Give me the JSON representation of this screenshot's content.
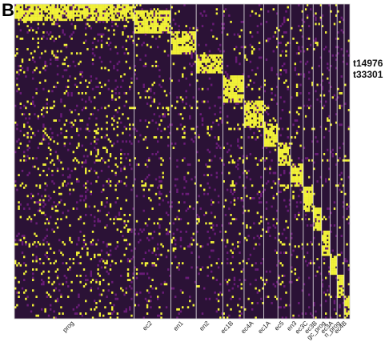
{
  "panel_label": "B",
  "highlighted_genes": [
    "t14976",
    "t33301"
  ],
  "chart_data": {
    "type": "heatmap",
    "title": "",
    "xlabel": "",
    "ylabel": "",
    "colorscale": {
      "low": "#1a0a2a",
      "mid": "#6a1c78",
      "high": "#f2f238"
    },
    "background_color": "#2b1236",
    "divider_color": "#e8e8e8",
    "clusters": [
      {
        "label": "prog",
        "relative_width": 42.5,
        "marker_row_start": 0.0,
        "marker_row_end": 0.05
      },
      {
        "label": "ec2",
        "relative_width": 13.0,
        "marker_row_start": 0.02,
        "marker_row_end": 0.09
      },
      {
        "label": "en1",
        "relative_width": 9.0,
        "marker_row_start": 0.09,
        "marker_row_end": 0.16
      },
      {
        "label": "en2",
        "relative_width": 9.5,
        "marker_row_start": 0.16,
        "marker_row_end": 0.22
      },
      {
        "label": "ec1B",
        "relative_width": 7.5,
        "marker_row_start": 0.23,
        "marker_row_end": 0.31
      },
      {
        "label": "ec4A",
        "relative_width": 7.0,
        "marker_row_start": 0.31,
        "marker_row_end": 0.39
      },
      {
        "label": "ec1A",
        "relative_width": 5.0,
        "marker_row_start": 0.38,
        "marker_row_end": 0.45
      },
      {
        "label": "ec5",
        "relative_width": 4.5,
        "marker_row_start": 0.44,
        "marker_row_end": 0.51
      },
      {
        "label": "en3",
        "relative_width": 4.5,
        "marker_row_start": 0.51,
        "marker_row_end": 0.58
      },
      {
        "label": "ec3C",
        "relative_width": 3.5,
        "marker_row_start": 0.58,
        "marker_row_end": 0.66
      },
      {
        "label": "ec3B",
        "relative_width": 3.0,
        "marker_row_start": 0.65,
        "marker_row_end": 0.72
      },
      {
        "label": "gc_prog",
        "relative_width": 3.0,
        "marker_row_start": 0.72,
        "marker_row_end": 0.8
      },
      {
        "label": "ec3A",
        "relative_width": 2.5,
        "marker_row_start": 0.8,
        "marker_row_end": 0.86
      },
      {
        "label": "n_prog",
        "relative_width": 2.5,
        "marker_row_start": 0.86,
        "marker_row_end": 0.93
      },
      {
        "label": "ec4B",
        "relative_width": 2.0,
        "marker_row_start": 0.93,
        "marker_row_end": 1.0
      }
    ],
    "n_rows": 150,
    "grid": false,
    "legend": "none"
  }
}
